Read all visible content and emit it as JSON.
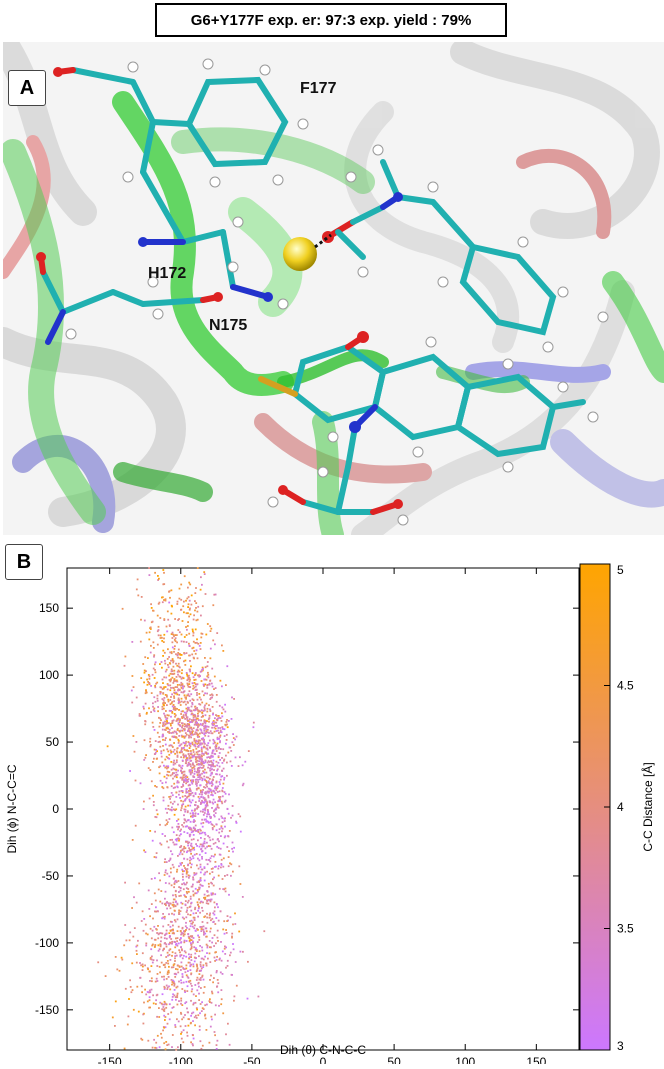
{
  "figure": {
    "title": "G6+Y177F exp. er: 97:3 exp. yield : 79%",
    "panel_a": {
      "label": "A",
      "residue_labels": [
        "F177",
        "H172",
        "N175"
      ]
    },
    "panel_b": {
      "label": "B"
    }
  },
  "chart_data": {
    "type": "scatter",
    "xlabel": "Dih (θ) C-N-C-C",
    "ylabel": "Dih (ϕ) N-C-C=C",
    "xlim": [
      -180,
      180
    ],
    "ylim": [
      -180,
      180
    ],
    "xticks": [
      "-150",
      "-100",
      "-50",
      "0",
      "50",
      "100",
      "150"
    ],
    "yticks": [
      "150",
      "100",
      "50",
      "0",
      "-50",
      "-100",
      "-150"
    ],
    "grid": false,
    "colorbar": {
      "label": "C-C Distance [Å]",
      "range": [
        3,
        5
      ],
      "ticks": [
        "5",
        "4.5",
        "4",
        "3.5",
        "3"
      ],
      "colors": [
        "#cc77ff",
        "#ffa500"
      ]
    },
    "series": [
      {
        "clusters": [
          {
            "x_center": -105,
            "x_spread": 14,
            "y_center": 110,
            "y_spread": 42,
            "c_center": 4.25,
            "c_spread": 0.45,
            "n": 520
          },
          {
            "x_center": -95,
            "x_spread": 13,
            "y_center": 55,
            "y_spread": 28,
            "c_center": 3.9,
            "c_spread": 0.45,
            "n": 800
          },
          {
            "x_center": -82,
            "x_spread": 10,
            "y_center": 25,
            "y_spread": 30,
            "c_center": 3.4,
            "c_spread": 0.3,
            "n": 420
          },
          {
            "x_center": -88,
            "x_spread": 11,
            "y_center": -10,
            "y_spread": 25,
            "c_center": 3.4,
            "c_spread": 0.3,
            "n": 260
          },
          {
            "x_center": -95,
            "x_spread": 15,
            "y_center": -95,
            "y_spread": 45,
            "c_center": 3.75,
            "c_spread": 0.45,
            "n": 950
          },
          {
            "x_center": -120,
            "x_spread": 14,
            "y_center": -130,
            "y_spread": 30,
            "c_center": 4.2,
            "c_spread": 0.4,
            "n": 160
          }
        ]
      }
    ]
  }
}
